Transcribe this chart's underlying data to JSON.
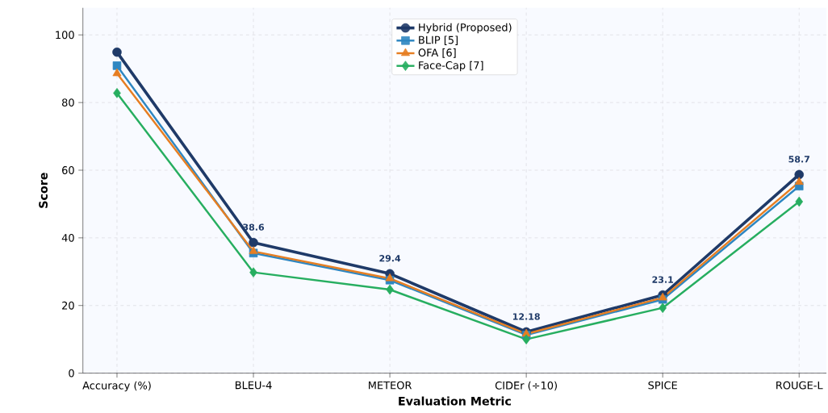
{
  "chart_data": {
    "type": "line",
    "xlabel": "Evaluation Metric",
    "ylabel": "Score",
    "categories": [
      "Accuracy (%)",
      "BLEU-4",
      "METEOR",
      "CIDEr (÷10)",
      "SPICE",
      "ROUGE-L"
    ],
    "series": [
      {
        "name": "Hybrid (Proposed)",
        "color": "#1f3a68",
        "marker": "circle",
        "values": [
          94.9,
          38.6,
          29.4,
          12.18,
          23.1,
          58.7
        ],
        "value_labels": [
          null,
          "38.6",
          "29.4",
          "12.18",
          "23.1",
          "58.7"
        ]
      },
      {
        "name": "BLIP [5]",
        "color": "#2e86c1",
        "marker": "square",
        "values": [
          90.9,
          35.5,
          27.5,
          11.3,
          21.8,
          55.3
        ]
      },
      {
        "name": "OFA [6]",
        "color": "#e67e22",
        "marker": "triangle",
        "values": [
          88.6,
          36.0,
          28.0,
          11.6,
          22.3,
          56.5
        ]
      },
      {
        "name": "Face-Cap [7]",
        "color": "#27ae60",
        "marker": "diamond",
        "values": [
          82.8,
          29.8,
          24.7,
          10.0,
          19.3,
          50.7
        ]
      }
    ],
    "ylim": [
      0,
      108
    ],
    "yticks": [
      0,
      20,
      40,
      60,
      80,
      100
    ],
    "grid": true,
    "legend": "top",
    "line_style": "solid"
  }
}
